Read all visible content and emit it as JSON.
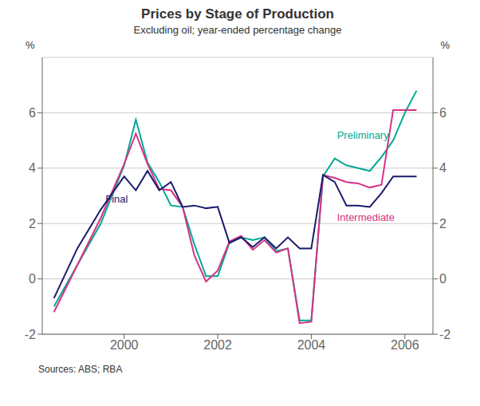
{
  "chart_data": {
    "type": "line",
    "title": "Prices by Stage of Production",
    "subtitle": "Excluding oil; year-ended percentage change",
    "source": "Sources: ABS; RBA",
    "ylabel": "%",
    "y2label": "%",
    "x": [
      1998.5,
      1999.0,
      1999.5,
      2000.0,
      2000.25,
      2000.5,
      2000.75,
      2001.0,
      2001.25,
      2001.5,
      2001.75,
      2002.0,
      2002.25,
      2002.5,
      2002.75,
      2003.0,
      2003.25,
      2003.5,
      2003.75,
      2004.0,
      2004.25,
      2004.5,
      2004.75,
      2005.0,
      2005.25,
      2005.5,
      2005.75,
      2006.0,
      2006.25
    ],
    "series": [
      {
        "name": "Preliminary",
        "color": "#00a896",
        "values": [
          -1.0,
          0.5,
          2.0,
          4.1,
          5.75,
          4.2,
          3.5,
          2.65,
          2.6,
          1.25,
          0.1,
          0.1,
          1.3,
          1.5,
          1.4,
          1.5,
          1.0,
          1.1,
          -1.5,
          -1.5,
          3.7,
          4.35,
          4.1,
          4.0,
          3.9,
          4.4,
          5.0,
          6.0,
          6.8
        ]
      },
      {
        "name": "Intermediate",
        "color": "#d63384",
        "values": [
          -1.2,
          0.5,
          2.2,
          4.15,
          5.25,
          4.15,
          3.25,
          3.2,
          2.6,
          0.85,
          -0.1,
          0.3,
          1.35,
          1.55,
          1.05,
          1.4,
          0.95,
          1.1,
          -1.6,
          -1.55,
          3.75,
          3.65,
          3.5,
          3.45,
          3.3,
          3.4,
          6.1,
          6.1,
          6.1
        ]
      },
      {
        "name": "Final",
        "color": "#1a1a6e",
        "values": [
          -0.7,
          1.1,
          2.5,
          3.7,
          3.2,
          3.9,
          3.2,
          3.5,
          2.6,
          2.65,
          2.55,
          2.6,
          1.3,
          1.5,
          1.15,
          1.5,
          1.1,
          1.5,
          1.1,
          1.1,
          3.75,
          3.5,
          2.65,
          2.65,
          2.6,
          3.1,
          3.7,
          3.7,
          3.7
        ]
      }
    ],
    "xlim": [
      1998.25,
      2006.6
    ],
    "xticks": [
      2000,
      2002,
      2004,
      2006
    ],
    "ylim": [
      -2,
      8
    ],
    "yticks": [
      -2,
      0,
      2,
      4,
      6
    ],
    "y2lim": [
      -2,
      8
    ],
    "y2ticks": [
      -2,
      0,
      2,
      4,
      6
    ],
    "grid": "y",
    "annotations": [
      {
        "text": "Final",
        "x": 1999.6,
        "y": 2.75,
        "color": "#1a1a6e"
      },
      {
        "text": "Preliminary",
        "x": 2004.55,
        "y": 5.05,
        "color": "#00a896"
      },
      {
        "text": "Intermediate",
        "x": 2004.55,
        "y": 2.1,
        "color": "#d63384"
      }
    ]
  }
}
